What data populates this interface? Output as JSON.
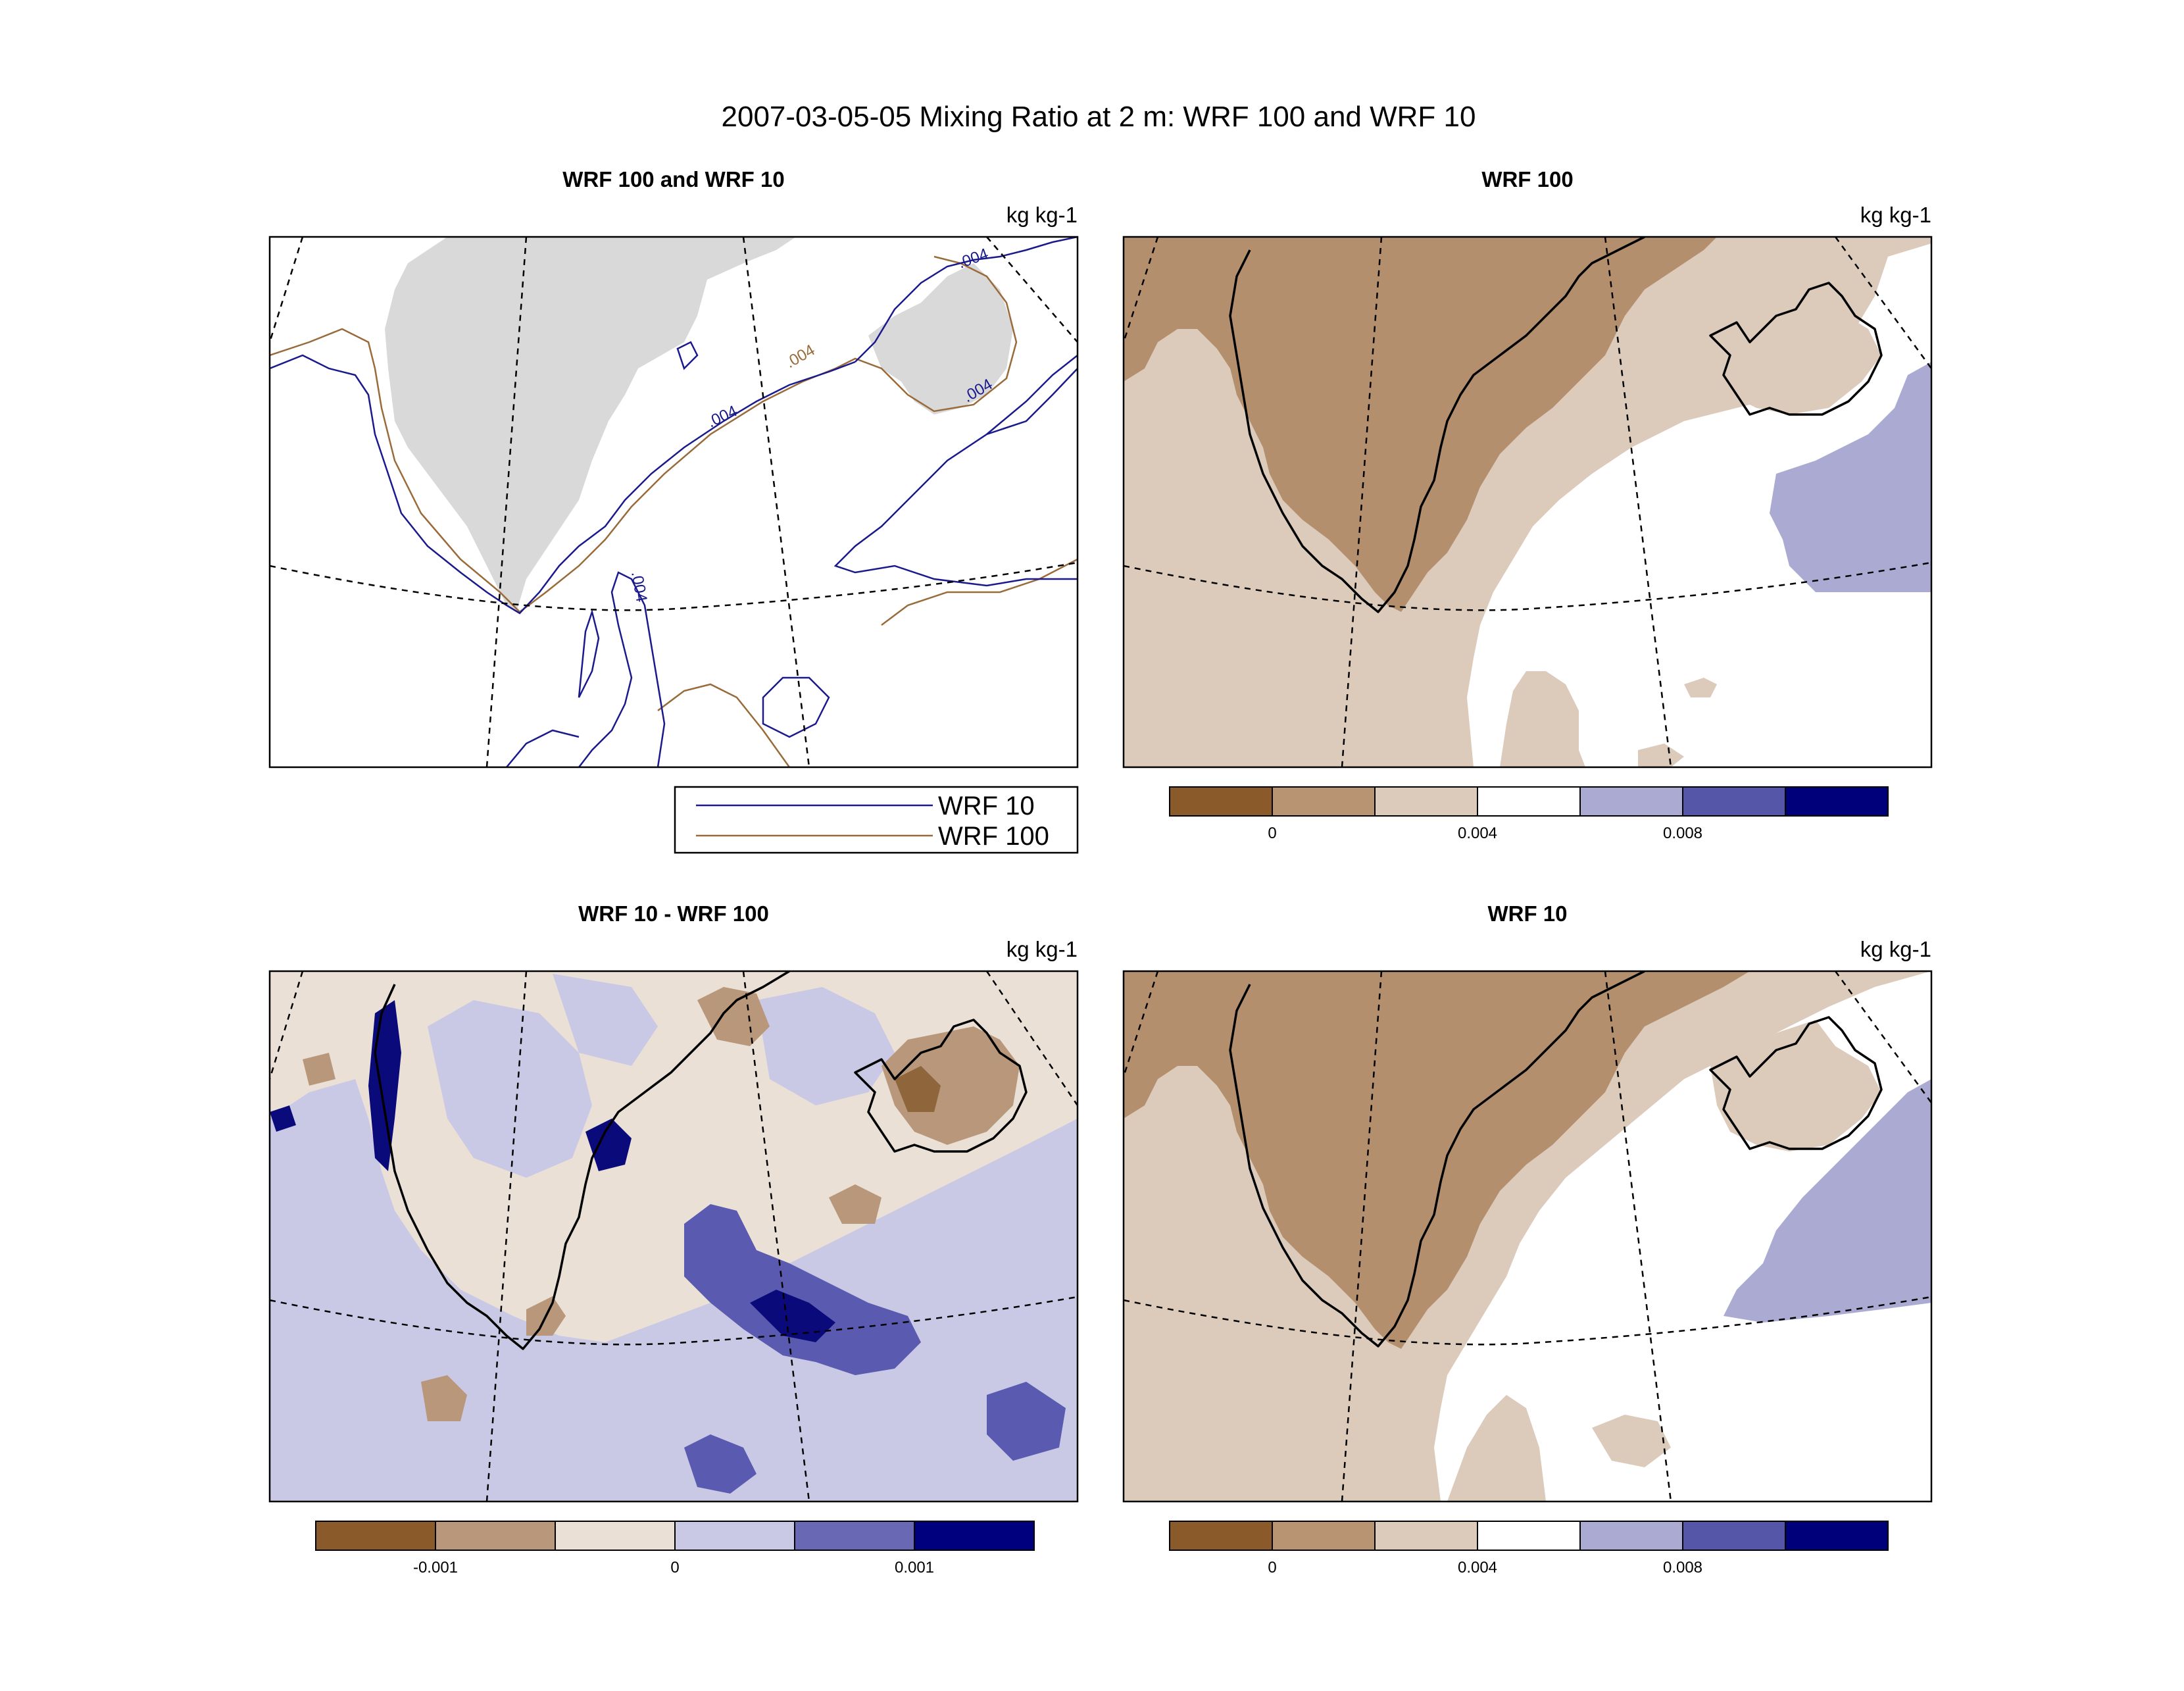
{
  "title": "2007-03-05-05 Mixing Ratio at 2 m: WRF 100 and WRF 10",
  "panels": [
    {
      "id": "overlay",
      "title": "WRF 100 and WRF 10",
      "units": "kg kg-1",
      "contour_labels": [
        ".004",
        ".004",
        ".004",
        ".004",
        ".004"
      ]
    },
    {
      "id": "wrf100",
      "title": "WRF 100",
      "units": "kg kg-1"
    },
    {
      "id": "diff",
      "title": "WRF 10 - WRF 100",
      "units": "kg kg-1"
    },
    {
      "id": "wrf10",
      "title": "WRF 10",
      "units": "kg kg-1"
    }
  ],
  "legend": {
    "entries": [
      {
        "label": "WRF 10",
        "color": "#1a1a8c"
      },
      {
        "label": "WRF 100",
        "color": "#9a6b3a"
      }
    ]
  },
  "colorbars": {
    "mixing_ratio": {
      "colors": [
        "#8b5a2b",
        "#b89473",
        "#dccbbb",
        "#ffffff",
        "#aaaad2",
        "#5656a8",
        "#00007a"
      ],
      "tick_labels": [
        "0",
        "0.004",
        "0.008"
      ]
    },
    "difference": {
      "colors": [
        "#8b5a2b",
        "#b8977a",
        "#ebe0d6",
        "#c9c9e6",
        "#6868b4",
        "#00007f"
      ],
      "tick_labels": [
        "-0.001",
        "0",
        "0.001"
      ]
    }
  },
  "map_colors": {
    "land_gray": "#d9d9d9",
    "fill_dark_brown": "#b48f6e",
    "fill_light_brown": "#dccbbb",
    "fill_white": "#ffffff",
    "fill_light_blue": "#aaaad2",
    "diff_base": "#ebe0d6",
    "diff_light_blue": "#c9c9e6",
    "diff_mid_blue": "#5a5ab0",
    "diff_dark_blue": "#0a0a7a",
    "diff_brown": "#b8977a",
    "diff_dark_brown": "#8f653c"
  }
}
